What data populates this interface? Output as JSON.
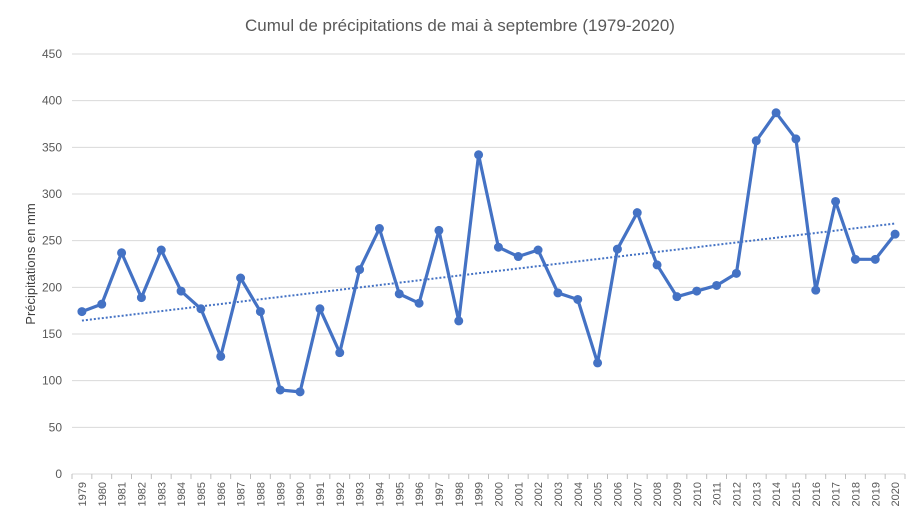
{
  "chart_data": {
    "type": "line",
    "title": "Cumul de précipitations de mai à septembre (1979-2020)",
    "xlabel": "",
    "ylabel": "Précipitations en mm",
    "ylim": [
      0,
      450
    ],
    "yticks": [
      0,
      50,
      100,
      150,
      200,
      250,
      300,
      350,
      400,
      450
    ],
    "grid": true,
    "legend": "none",
    "categories": [
      "1979",
      "1980",
      "1981",
      "1982",
      "1983",
      "1984",
      "1985",
      "1986",
      "1987",
      "1988",
      "1989",
      "1990",
      "1991",
      "1992",
      "1993",
      "1994",
      "1995",
      "1996",
      "1997",
      "1998",
      "1999",
      "2000",
      "2001",
      "2002",
      "2003",
      "2004",
      "2005",
      "2006",
      "2007",
      "2008",
      "2009",
      "2010",
      "2011",
      "2012",
      "2013",
      "2014",
      "2015",
      "2016",
      "2017",
      "2018",
      "2019",
      "2020"
    ],
    "series": [
      {
        "values": [
          174,
          182,
          237,
          189,
          240,
          196,
          177,
          126,
          210,
          174,
          90,
          88,
          177,
          130,
          219,
          263,
          193,
          183,
          261,
          164,
          342,
          243,
          233,
          240,
          194,
          187,
          119,
          241,
          280,
          224,
          190,
          196,
          202,
          215,
          357,
          387,
          359,
          197,
          292,
          230,
          230,
          257
        ],
        "color": "#4472C4",
        "marker": "circle"
      }
    ],
    "trendline": {
      "type": "linear",
      "style": "dotted",
      "color": "#4472C4"
    }
  }
}
